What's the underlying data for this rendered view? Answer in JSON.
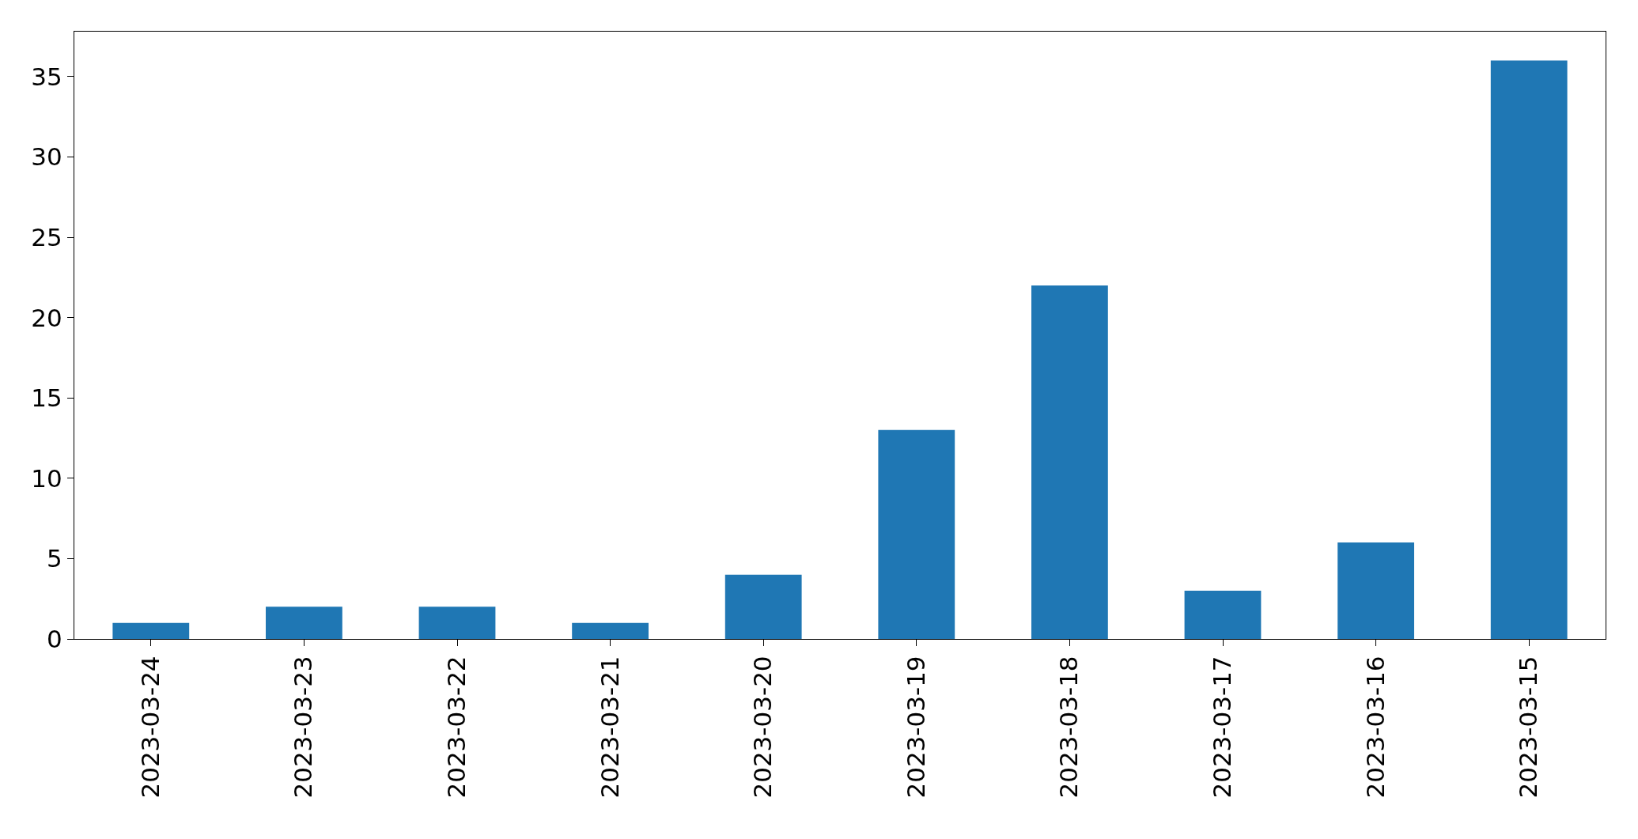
{
  "chart_data": {
    "type": "bar",
    "categories": [
      "2023-03-24",
      "2023-03-23",
      "2023-03-22",
      "2023-03-21",
      "2023-03-20",
      "2023-03-19",
      "2023-03-18",
      "2023-03-17",
      "2023-03-16",
      "2023-03-15"
    ],
    "values": [
      1,
      2,
      2,
      1,
      4,
      13,
      22,
      3,
      6,
      36
    ],
    "color": "#1f77b4",
    "ylim": [
      0,
      37.8
    ],
    "yticks": [
      0,
      5,
      10,
      15,
      20,
      25,
      30,
      35
    ]
  }
}
